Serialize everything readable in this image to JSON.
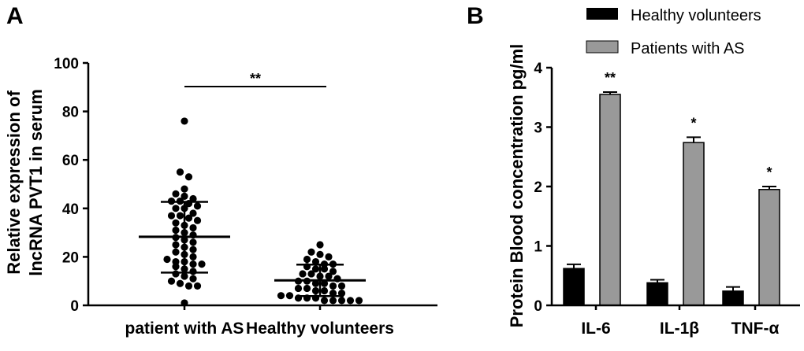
{
  "colors": {
    "healthy": "#000000",
    "patients": "#999999",
    "axis": "#000000"
  },
  "chart_data": [
    {
      "panel": "A",
      "type": "scatter",
      "ylabel_line1": "Relative expression of",
      "ylabel_line2": "lncRNA PVT1 in serum",
      "ylim": [
        0,
        100
      ],
      "yticks": [
        0,
        20,
        40,
        60,
        80,
        100
      ],
      "categories": [
        "patient with AS",
        "Healthy volunteers"
      ],
      "significance": "**",
      "groups": [
        {
          "name": "patient with AS",
          "mean": 28.3,
          "sd_low": 13.5,
          "sd_high": 42.7,
          "points": [
            76,
            55,
            53,
            48,
            46,
            45,
            44,
            43,
            43,
            42,
            41,
            40,
            40,
            38,
            37,
            37,
            36,
            35,
            34,
            33,
            32,
            31,
            30,
            29,
            28,
            27,
            26,
            25,
            24,
            23,
            22,
            21,
            20,
            19,
            18,
            18,
            17,
            17,
            16,
            15,
            14,
            13,
            12,
            11,
            10,
            9,
            8,
            8,
            1
          ]
        },
        {
          "name": "Healthy volunteers",
          "mean": 10.3,
          "sd_low": 3.8,
          "sd_high": 16.8,
          "points": [
            25,
            22,
            21,
            20,
            19,
            18,
            17,
            17,
            16,
            15,
            15,
            14,
            13,
            13,
            12,
            12,
            11,
            10,
            10,
            9,
            9,
            8,
            8,
            7,
            7,
            6,
            6,
            5,
            5,
            4,
            4,
            3,
            3,
            3,
            2,
            2,
            2,
            2,
            2
          ]
        }
      ]
    },
    {
      "panel": "B",
      "type": "bar",
      "ylabel": "Protein Blood concentration pg/ml",
      "ylim": [
        0,
        4
      ],
      "yticks": [
        0,
        1,
        2,
        3,
        4
      ],
      "categories": [
        "IL-6",
        "IL-1β",
        "TNF-α"
      ],
      "series": [
        {
          "name": "Healthy volunteers",
          "color": "#000000",
          "values": [
            0.62,
            0.38,
            0.24
          ],
          "errors": [
            0.07,
            0.05,
            0.07
          ]
        },
        {
          "name": "Patients with AS",
          "color": "#999999",
          "values": [
            3.55,
            2.74,
            1.95
          ],
          "errors": [
            0.04,
            0.09,
            0.05
          ]
        }
      ],
      "significance": [
        "**",
        "*",
        "*"
      ],
      "legend_position": "top-right"
    }
  ]
}
